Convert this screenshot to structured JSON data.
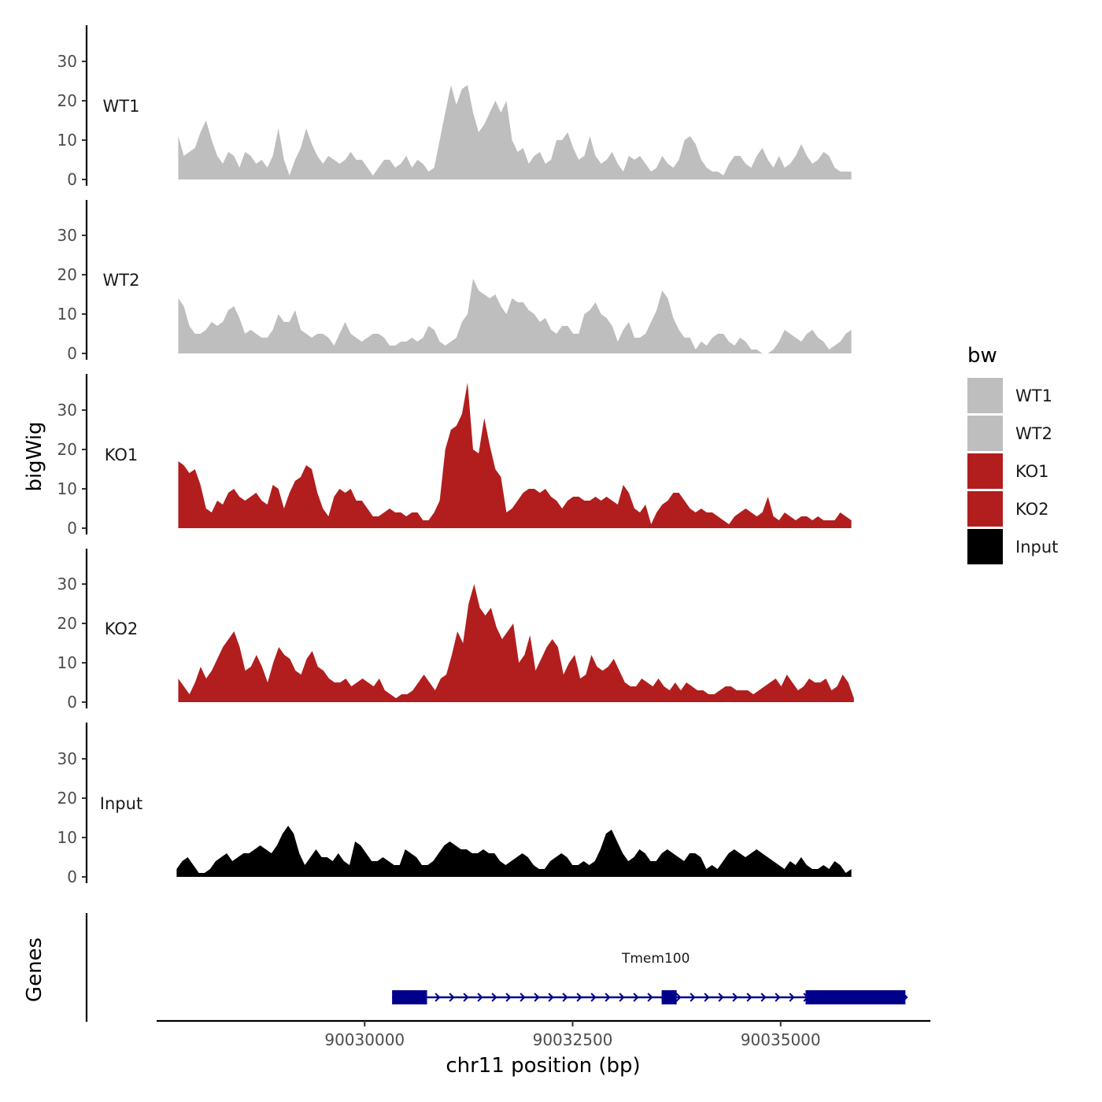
{
  "chart_data": {
    "type": "area",
    "title": "",
    "xlabel": "chr11 position (bp)",
    "ylabel": "bigWig",
    "genes_label": "Genes",
    "xlim": [
      90027500,
      90036800
    ],
    "ylim": [
      0,
      40
    ],
    "x_ticks": [
      90030000,
      90032500,
      90035000
    ],
    "x_tick_labels": [
      "90030000",
      "90032500",
      "90035000"
    ],
    "y_ticks": [
      0,
      10,
      20,
      30
    ],
    "y_tick_labels": [
      "0",
      "10",
      "20",
      "30"
    ],
    "legend": {
      "title": "bw",
      "position": "right",
      "entries": [
        {
          "label": "WT1",
          "color": "#bebebe"
        },
        {
          "label": "WT2",
          "color": "#bebebe"
        },
        {
          "label": "KO1",
          "color": "#b21e1e"
        },
        {
          "label": "KO2",
          "color": "#b21e1e"
        },
        {
          "label": "Input",
          "color": "#000000"
        }
      ]
    },
    "series": [
      {
        "name": "WT1",
        "color": "#bebebe",
        "x_start": 90027760,
        "x_end": 90035850,
        "step": 100,
        "values": [
          11,
          6,
          7,
          8,
          12,
          15,
          10,
          6,
          4,
          7,
          6,
          3,
          7,
          6,
          4,
          5,
          3,
          6,
          13,
          5,
          1,
          5,
          8,
          13,
          9,
          6,
          4,
          6,
          5,
          4,
          5,
          7,
          5,
          5,
          3,
          1,
          3,
          5,
          5,
          3,
          4,
          6,
          3,
          5,
          4,
          2,
          3,
          10,
          17,
          24,
          19,
          23,
          24,
          17,
          12,
          14,
          17,
          20,
          17,
          20,
          10,
          7,
          8,
          4,
          6,
          7,
          4,
          5,
          10,
          10,
          12,
          8,
          5,
          6,
          11,
          6,
          4,
          5,
          7,
          4,
          2,
          6,
          5,
          6,
          4,
          2,
          3,
          6,
          4,
          3,
          5,
          10,
          11,
          9,
          5,
          3,
          2,
          2,
          1,
          4,
          6,
          6,
          4,
          3,
          6,
          8,
          5,
          3,
          6,
          3,
          4,
          6,
          9,
          6,
          4,
          5,
          7,
          6,
          3,
          2,
          2,
          2
        ]
      },
      {
        "name": "WT2",
        "color": "#bebebe",
        "x_start": 90027760,
        "x_end": 90035850,
        "step": 100,
        "values": [
          14,
          12,
          7,
          5,
          5,
          6,
          8,
          7,
          8,
          11,
          12,
          9,
          5,
          6,
          5,
          4,
          4,
          6,
          10,
          8,
          8,
          11,
          6,
          5,
          4,
          5,
          5,
          4,
          2,
          5,
          8,
          5,
          4,
          3,
          4,
          5,
          5,
          4,
          2,
          2,
          3,
          3,
          4,
          3,
          4,
          7,
          6,
          3,
          2,
          3,
          4,
          8,
          10,
          19,
          16,
          15,
          14,
          15,
          12,
          10,
          14,
          13,
          13,
          11,
          10,
          8,
          9,
          6,
          5,
          7,
          7,
          5,
          5,
          10,
          11,
          13,
          10,
          9,
          7,
          3,
          6,
          8,
          4,
          4,
          5,
          8,
          11,
          16,
          14,
          9,
          6,
          4,
          4,
          1,
          3,
          2,
          4,
          5,
          5,
          3,
          2,
          4,
          3,
          1,
          1,
          0,
          0,
          1,
          3,
          6,
          5,
          4,
          3,
          5,
          6,
          4,
          3,
          1,
          2,
          3,
          5,
          6
        ]
      },
      {
        "name": "KO1",
        "color": "#b21e1e",
        "x_start": 90027760,
        "x_end": 90035850,
        "step": 100,
        "values": [
          17,
          16,
          14,
          15,
          11,
          5,
          4,
          7,
          6,
          9,
          10,
          8,
          7,
          8,
          9,
          7,
          6,
          11,
          10,
          5,
          9,
          12,
          13,
          16,
          15,
          9,
          5,
          3,
          8,
          10,
          9,
          10,
          7,
          7,
          5,
          3,
          3,
          4,
          5,
          4,
          4,
          3,
          4,
          4,
          2,
          2,
          4,
          7,
          20,
          25,
          26,
          29,
          37,
          20,
          19,
          28,
          21,
          15,
          13,
          4,
          5,
          7,
          9,
          10,
          10,
          9,
          10,
          8,
          7,
          5,
          7,
          8,
          8,
          7,
          7,
          8,
          7,
          8,
          7,
          6,
          11,
          9,
          5,
          4,
          6,
          1,
          4,
          6,
          7,
          9,
          9,
          7,
          5,
          4,
          5,
          4,
          4,
          3,
          2,
          1,
          3,
          4,
          5,
          4,
          3,
          4,
          8,
          3,
          2,
          4,
          3,
          2,
          3,
          3,
          2,
          3,
          2,
          2,
          2,
          4,
          3,
          2
        ]
      },
      {
        "name": "KO2",
        "color": "#b21e1e",
        "x_start": 90027760,
        "x_end": 90035880,
        "step": 100,
        "values": [
          6,
          4,
          2,
          5,
          9,
          6,
          8,
          11,
          14,
          16,
          18,
          14,
          8,
          9,
          12,
          9,
          5,
          10,
          14,
          12,
          11,
          8,
          7,
          11,
          13,
          9,
          8,
          6,
          5,
          5,
          6,
          4,
          5,
          6,
          5,
          4,
          6,
          3,
          2,
          1,
          2,
          2,
          3,
          5,
          7,
          5,
          3,
          6,
          7,
          12,
          18,
          15,
          25,
          30,
          24,
          22,
          24,
          19,
          16,
          18,
          20,
          10,
          12,
          17,
          8,
          11,
          14,
          16,
          14,
          7,
          10,
          12,
          6,
          7,
          12,
          9,
          8,
          9,
          11,
          8,
          5,
          4,
          4,
          6,
          5,
          4,
          6,
          4,
          3,
          5,
          3,
          5,
          4,
          3,
          3,
          2,
          2,
          3,
          4,
          4,
          3,
          3,
          3,
          2,
          3,
          4,
          5,
          6,
          4,
          7,
          5,
          3,
          4,
          6,
          5,
          5,
          6,
          3,
          4,
          7,
          5,
          1
        ]
      },
      {
        "name": "Input",
        "color": "#000000",
        "x_start": 90027740,
        "x_end": 90035850,
        "step": 100,
        "values": [
          2,
          4,
          5,
          3,
          1,
          1,
          2,
          4,
          5,
          6,
          4,
          5,
          6,
          6,
          7,
          8,
          7,
          6,
          8,
          11,
          13,
          11,
          6,
          3,
          5,
          7,
          5,
          5,
          4,
          6,
          4,
          3,
          9,
          8,
          6,
          4,
          4,
          5,
          4,
          3,
          3,
          7,
          6,
          5,
          3,
          3,
          4,
          6,
          8,
          9,
          8,
          7,
          7,
          6,
          6,
          7,
          6,
          6,
          4,
          3,
          4,
          5,
          6,
          5,
          3,
          2,
          2,
          4,
          5,
          6,
          5,
          3,
          3,
          4,
          3,
          4,
          7,
          11,
          12,
          9,
          6,
          4,
          5,
          7,
          6,
          4,
          4,
          6,
          7,
          6,
          5,
          4,
          6,
          6,
          5,
          2,
          3,
          2,
          4,
          6,
          7,
          6,
          5,
          6,
          7,
          6,
          5,
          4,
          3,
          2,
          4,
          3,
          5,
          3,
          2,
          2,
          3,
          2,
          4,
          3,
          1,
          2
        ]
      }
    ],
    "genes": [
      {
        "name": "Tmem100",
        "strand": "+",
        "start": 90030330,
        "end": 90036500,
        "color": "#00008b",
        "exons": [
          [
            90030330,
            90030750
          ],
          [
            90033570,
            90033750
          ],
          [
            90035300,
            90036500
          ]
        ]
      }
    ]
  }
}
